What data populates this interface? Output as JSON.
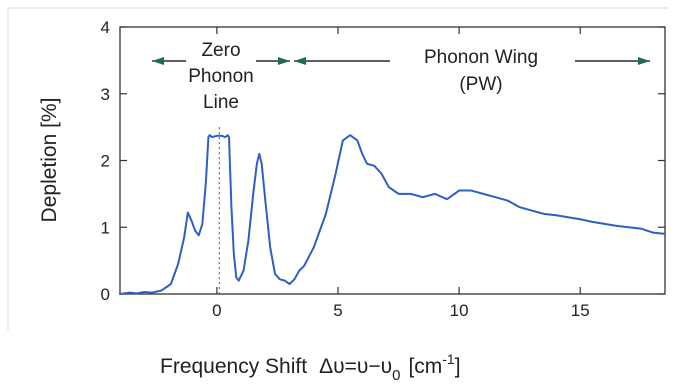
{
  "chart_data": {
    "type": "line",
    "xlabel_prefix": "Frequency Shift",
    "xlabel_formula": "Δυ=υ−υ",
    "xlabel_subscript": "0",
    "xlabel_unit_open": "[cm",
    "xlabel_unit_exp": "-1",
    "xlabel_unit_close": "]",
    "ylabel": "Depletion [%]",
    "xlim": [
      -4,
      18.5
    ],
    "ylim": [
      0,
      4
    ],
    "x_ticks": [
      0,
      5,
      10,
      15
    ],
    "x_tick_labels": [
      "0",
      "5",
      "10",
      "15"
    ],
    "y_ticks": [
      0,
      1,
      2,
      3,
      4
    ],
    "y_tick_labels": [
      "0",
      "1",
      "2",
      "3",
      "4"
    ],
    "grid": false,
    "legend": "none",
    "line_color": "#2f5fc4",
    "reference_line_x": 0.1,
    "annotations": {
      "zpl_lines": [
        "Zero",
        "Phonon",
        "Line"
      ],
      "pw_lines": [
        "Phonon Wing",
        "(PW)"
      ]
    },
    "series": [
      {
        "x": [
          -4.0,
          -3.6,
          -3.3,
          -3.0,
          -2.7,
          -2.3,
          -1.9,
          -1.6,
          -1.35,
          -1.2,
          -1.05,
          -0.9,
          -0.75,
          -0.6,
          -0.45,
          -0.35,
          -0.3,
          -0.2,
          0.0,
          0.2,
          0.35,
          0.45,
          0.5,
          0.6,
          0.7,
          0.8,
          0.9,
          1.1,
          1.3,
          1.5,
          1.65,
          1.75,
          1.85,
          2.0,
          2.2,
          2.4,
          2.6,
          2.8,
          3.0,
          3.2,
          3.4,
          3.6,
          4.0,
          4.5,
          4.9,
          5.2,
          5.5,
          5.8,
          6.0,
          6.2,
          6.5,
          6.8,
          7.1,
          7.5,
          8.0,
          8.5,
          9.0,
          9.5,
          10.0,
          10.5,
          11.0,
          11.5,
          12.0,
          12.5,
          13.0,
          13.5,
          14.0,
          14.5,
          15.0,
          15.5,
          16.0,
          16.5,
          17.0,
          17.5,
          18.0,
          18.5
        ],
        "y": [
          0.0,
          0.02,
          0.01,
          0.03,
          0.02,
          0.05,
          0.15,
          0.45,
          0.85,
          1.22,
          1.1,
          0.95,
          0.88,
          1.05,
          1.7,
          2.35,
          2.38,
          2.35,
          2.37,
          2.37,
          2.35,
          2.38,
          2.35,
          1.3,
          0.6,
          0.25,
          0.2,
          0.35,
          0.8,
          1.5,
          1.95,
          2.1,
          1.95,
          1.4,
          0.7,
          0.3,
          0.22,
          0.2,
          0.15,
          0.22,
          0.35,
          0.42,
          0.7,
          1.2,
          1.8,
          2.3,
          2.38,
          2.3,
          2.1,
          1.95,
          1.92,
          1.8,
          1.6,
          1.5,
          1.5,
          1.45,
          1.5,
          1.42,
          1.55,
          1.55,
          1.5,
          1.45,
          1.4,
          1.3,
          1.25,
          1.2,
          1.18,
          1.15,
          1.12,
          1.08,
          1.05,
          1.02,
          1.0,
          0.98,
          0.92,
          0.9
        ]
      }
    ]
  }
}
